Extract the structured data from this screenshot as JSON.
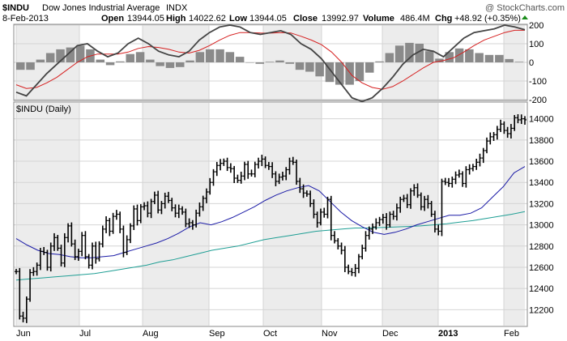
{
  "header": {
    "symbol": "$INDU",
    "name": "Dow Jones Industrial Average",
    "exchange": "INDX",
    "watermark": "@ StockCharts.com",
    "date": "8-Feb-2013",
    "open_label": "Open",
    "open": "13944.05",
    "high_label": "High",
    "high": "14022.62",
    "low_label": "Low",
    "low": "13944.05",
    "close_label": "Close",
    "close": "13992.97",
    "volume_label": "Volume",
    "volume": "486.4M",
    "chg_label": "Chg",
    "chg": "+48.92 (+0.35%)",
    "chg_arrow": "up-arrow-icon",
    "panel_label": "$INDU (Daily)"
  },
  "colors": {
    "price_bars": "#000000",
    "ma_fast": "#1a1aa6",
    "ma_slow": "#1e9e94",
    "macd_line": "#444444",
    "macd_signal": "#d62020",
    "histogram": "#8a8a8a",
    "shade": "#ececec",
    "grid": "#d4d4d4",
    "up_arrow": "#1a8c1a"
  },
  "chart_data": [
    {
      "type": "line",
      "panel": "indicator",
      "ylim": [
        -200,
        200
      ],
      "y_ticks": [
        "200",
        "100",
        "0",
        "-100",
        "-200"
      ],
      "series": [
        {
          "values": [
            -160,
            -180,
            -120,
            -60,
            -10,
            40,
            90,
            100,
            60,
            30,
            50,
            100,
            130,
            100,
            60,
            40,
            30,
            60,
            120,
            160,
            190,
            200,
            190,
            160,
            150,
            160,
            170,
            150,
            100,
            70,
            20,
            -50,
            -120,
            -190,
            -210,
            -190,
            -140,
            -80,
            -10,
            40,
            70,
            60,
            30,
            80,
            130,
            160,
            170,
            180,
            200,
            190,
            175
          ]
        },
        {
          "values": [
            -120,
            -140,
            -135,
            -110,
            -80,
            -40,
            0,
            30,
            45,
            45,
            45,
            55,
            75,
            85,
            80,
            70,
            55,
            50,
            65,
            90,
            120,
            145,
            160,
            160,
            158,
            157,
            160,
            158,
            140,
            120,
            95,
            55,
            0,
            -70,
            -110,
            -135,
            -145,
            -130,
            -100,
            -65,
            -30,
            0,
            10,
            25,
            55,
            90,
            120,
            140,
            160,
            172,
            172
          ]
        }
      ],
      "histogram": [
        -40,
        -40,
        15,
        50,
        70,
        80,
        90,
        70,
        15,
        -15,
        5,
        45,
        55,
        15,
        -20,
        -30,
        -25,
        10,
        55,
        70,
        70,
        55,
        30,
        0,
        -8,
        3,
        10,
        -8,
        -40,
        -50,
        -75,
        -105,
        -120,
        -120,
        -100,
        -55,
        5,
        50,
        90,
        105,
        100,
        60,
        20,
        55,
        75,
        70,
        50,
        40,
        40,
        18,
        3
      ]
    },
    {
      "type": "bar",
      "title": "$INDU (Daily)",
      "ylim": [
        12050,
        14150
      ],
      "y_ticks": [
        "14000",
        "13800",
        "13600",
        "13400",
        "13200",
        "13000",
        "12800",
        "12600",
        "12400",
        "12200"
      ],
      "x_ticks": [
        "Jun",
        "Jul",
        "Aug",
        "Sep",
        "Oct",
        "Nov",
        "Dec",
        "2013",
        "Feb"
      ],
      "ohlc_close": [
        12560,
        12140,
        12120,
        12300,
        12550,
        12560,
        12620,
        12750,
        12740,
        12600,
        12800,
        12880,
        12780,
        12640,
        12880,
        12990,
        12820,
        12700,
        12750,
        12900,
        12700,
        12620,
        12800,
        12680,
        12820,
        12960,
        13040,
        12940,
        13080,
        13100,
        12960,
        12740,
        12860,
        12990,
        13150,
        13040,
        13170,
        13180,
        13110,
        13220,
        13280,
        13140,
        13200,
        13270,
        13230,
        13160,
        13110,
        13150,
        13120,
        13010,
        13020,
        13000,
        13110,
        13170,
        13250,
        13310,
        13400,
        13500,
        13560,
        13580,
        13600,
        13540,
        13530,
        13440,
        13420,
        13460,
        13570,
        13480,
        13480,
        13570,
        13600,
        13620,
        13560,
        13550,
        13480,
        13410,
        13450,
        13460,
        13520,
        13600,
        13590,
        13410,
        13340,
        13300,
        13290,
        13200,
        13100,
        13020,
        13120,
        13100,
        13240,
        12900,
        12850,
        12800,
        12760,
        12600,
        12560,
        12550,
        12590,
        12700,
        12780,
        12900,
        12960,
        12980,
        13020,
        13050,
        13070,
        13000,
        13100,
        13080,
        13160,
        13240,
        13250,
        13190,
        13320,
        13350,
        13280,
        13170,
        13240,
        13200,
        13100,
        12960,
        12940,
        13410,
        13400,
        13390,
        13430,
        13470,
        13480,
        13390,
        13520,
        13530,
        13550,
        13590,
        13630,
        13700,
        13790,
        13830,
        13850,
        13900,
        13950,
        13890,
        13860,
        13910,
        14010,
        13990,
        14000,
        13990
      ],
      "series": [
        {
          "values": [
            12870,
            12810,
            12760,
            12730,
            12720,
            12700,
            12690,
            12690,
            12700,
            12710,
            12740,
            12770,
            12800,
            12830,
            12870,
            12920,
            12980,
            13020,
            13000,
            13030,
            13070,
            13120,
            13170,
            13230,
            13280,
            13320,
            13350,
            13370,
            13320,
            13220,
            13120,
            13040,
            12980,
            12930,
            12910,
            12930,
            12960,
            13000,
            13030,
            13060,
            13090,
            13090,
            13110,
            13160,
            13260,
            13360,
            13490,
            13550
          ]
        },
        {
          "values": [
            12480,
            12490,
            12500,
            12510,
            12520,
            12530,
            12540,
            12560,
            12580,
            12600,
            12620,
            12650,
            12670,
            12700,
            12730,
            12760,
            12780,
            12800,
            12830,
            12860,
            12880,
            12900,
            12920,
            12940,
            12950,
            12960,
            12970,
            12970,
            12975,
            12980,
            12985,
            12990,
            13000,
            13010,
            13025,
            13040,
            13060,
            13080,
            13100,
            13125
          ]
        }
      ]
    }
  ]
}
